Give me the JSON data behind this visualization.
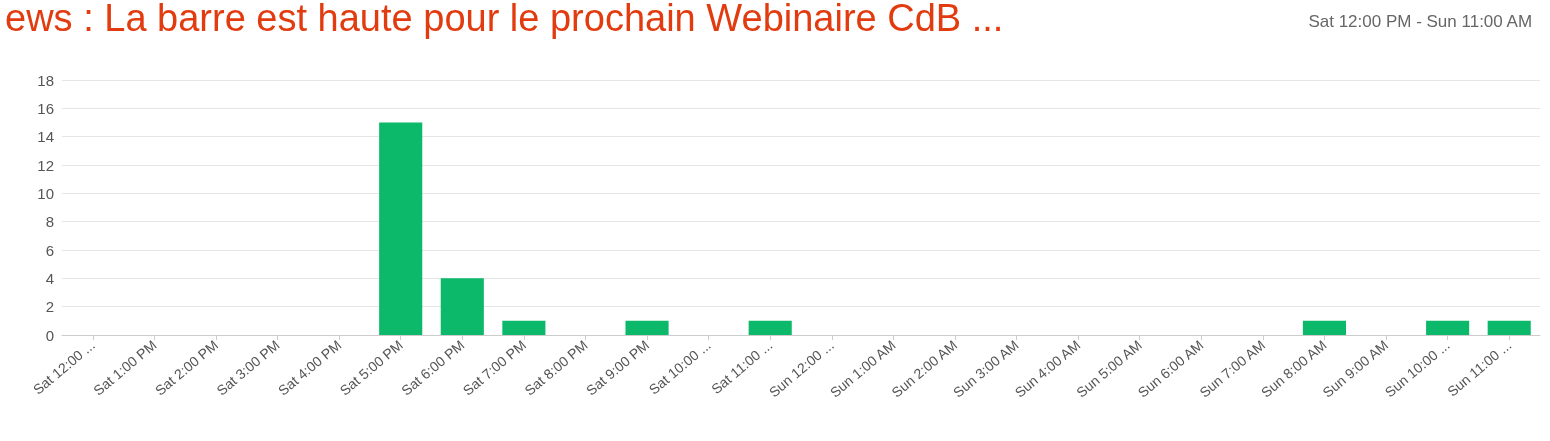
{
  "chart_data": {
    "type": "bar",
    "title": "ews : La barre est haute pour le prochain Webinaire CdB ...",
    "subtitle": "Sat 12:00 PM - Sun 11:00 AM",
    "categories": [
      "Sat 12:00 ...",
      "Sat 1:00 PM",
      "Sat 2:00 PM",
      "Sat 3:00 PM",
      "Sat 4:00 PM",
      "Sat 5:00 PM",
      "Sat 6:00 PM",
      "Sat 7:00 PM",
      "Sat 8:00 PM",
      "Sat 9:00 PM",
      "Sat 10:00 ...",
      "Sat 11:00 ...",
      "Sun 12:00 ...",
      "Sun 1:00 AM",
      "Sun 2:00 AM",
      "Sun 3:00 AM",
      "Sun 4:00 AM",
      "Sun 5:00 AM",
      "Sun 6:00 AM",
      "Sun 7:00 AM",
      "Sun 8:00 AM",
      "Sun 9:00 AM",
      "Sun 10:00 ...",
      "Sun 11:00 ..."
    ],
    "values": [
      0,
      0,
      0,
      0,
      0,
      15,
      4,
      1,
      0,
      1,
      0,
      1,
      0,
      0,
      0,
      0,
      0,
      0,
      0,
      0,
      1,
      0,
      1,
      1
    ],
    "color": "#0cb86a",
    "ylim": [
      0,
      18
    ],
    "yticks": [
      0,
      2,
      4,
      6,
      8,
      10,
      12,
      14,
      16,
      18
    ],
    "grid": "y"
  }
}
